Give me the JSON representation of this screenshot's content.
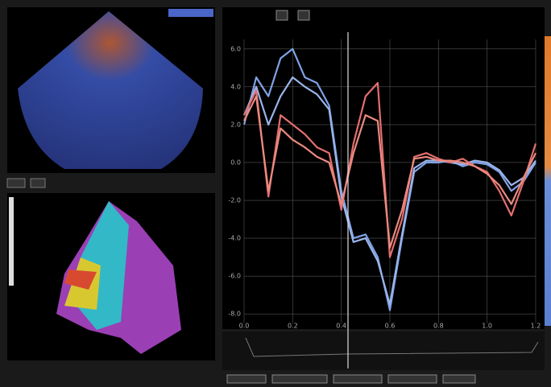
{
  "chart_data": {
    "type": "line",
    "x": [
      0,
      0.05,
      0.1,
      0.15,
      0.2,
      0.25,
      0.3,
      0.35,
      0.4,
      0.45,
      0.5,
      0.55,
      0.6,
      0.65,
      0.7,
      0.75,
      0.8,
      0.85,
      0.9,
      0.95,
      1,
      1.05,
      1.1,
      1.15,
      1.2
    ],
    "series": [
      {
        "color": "#7fa3e6",
        "values": [
          2.0,
          4.5,
          3.5,
          5.5,
          6.0,
          4.5,
          4.2,
          3.0,
          -1.5,
          -4.0,
          -3.8,
          -5.0,
          -7.8,
          -4.0,
          -0.5,
          0.0,
          0.0,
          0.1,
          -0.2,
          0.0,
          -0.1,
          -0.5,
          -1.5,
          -1.0,
          0.0
        ]
      },
      {
        "color": "#9ab4ea",
        "values": [
          2.5,
          4.0,
          2.0,
          3.5,
          4.5,
          4.0,
          3.6,
          2.8,
          -1.8,
          -4.2,
          -4.0,
          -5.2,
          -7.5,
          -3.8,
          -0.3,
          0.1,
          0.1,
          0.0,
          -0.1,
          0.1,
          0.0,
          -0.4,
          -1.2,
          -0.8,
          0.1
        ]
      },
      {
        "color": "#e46f6f",
        "values": [
          2.5,
          3.8,
          -1.8,
          2.5,
          2.0,
          1.5,
          0.8,
          0.5,
          -2.5,
          1.0,
          3.5,
          4.2,
          -5.0,
          -3.0,
          0.3,
          0.5,
          0.2,
          0.0,
          0.2,
          -0.2,
          -0.5,
          -1.5,
          -2.8,
          -1.0,
          1.0
        ]
      },
      {
        "color": "#ec8a80",
        "values": [
          2.2,
          3.5,
          -1.5,
          1.8,
          1.2,
          0.8,
          0.3,
          0.0,
          -2.2,
          0.5,
          2.5,
          2.2,
          -4.5,
          -2.5,
          0.2,
          0.3,
          0.1,
          0.1,
          0.0,
          -0.2,
          -0.6,
          -1.2,
          -2.2,
          -0.8,
          0.5
        ]
      }
    ],
    "xlim": [
      0,
      1.2
    ],
    "xticks": [
      {
        "value": 0,
        "label": "0.0"
      },
      0.2,
      0.4,
      0.6,
      0.8,
      {
        "value": 1,
        "label": "1.0"
      },
      1.2
    ],
    "ylim": [
      -8.5,
      6.5
    ],
    "yticks": [
      {
        "value": 6,
        "label": "6.0"
      },
      {
        "value": 4,
        "label": "4.0"
      },
      {
        "value": 2,
        "label": "2.0"
      },
      {
        "value": 0,
        "label": "0.0"
      },
      {
        "value": -2,
        "label": "-2.0"
      },
      {
        "value": -4,
        "label": "-4.0"
      },
      {
        "value": -6,
        "label": "-6.0"
      },
      {
        "value": -8,
        "label": "-8.0"
      }
    ],
    "grid": true
  }
}
